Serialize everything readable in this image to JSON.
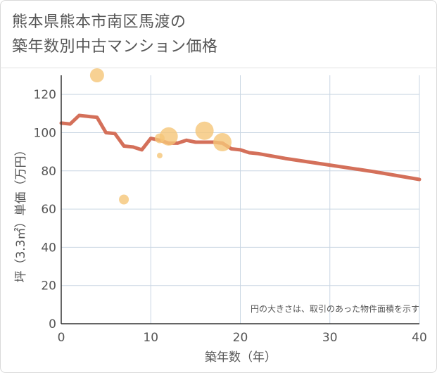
{
  "title": {
    "line1": "熊本県熊本市南区馬渡の",
    "line2": "築年数別中古マンション価格"
  },
  "chart_data": {
    "type": "scatter",
    "xlabel": "築年数（年）",
    "ylabel": "坪（3.3㎡）単価（万円）",
    "xlim": [
      0,
      40
    ],
    "ylim": [
      0,
      130
    ],
    "xticks": [
      0,
      10,
      20,
      30,
      40
    ],
    "yticks": [
      0,
      20,
      40,
      60,
      80,
      100,
      120
    ],
    "grid": true,
    "note": "円の大きさは、取引のあった物件面積を示す",
    "colors": {
      "points": "#f5c578",
      "trend": "#d4705a",
      "grid": "#c9d6e3",
      "text": "#555555"
    },
    "points": [
      {
        "x": 4,
        "y": 130,
        "size": 3
      },
      {
        "x": 7,
        "y": 65,
        "size": 2
      },
      {
        "x": 11,
        "y": 88,
        "size": 1
      },
      {
        "x": 11,
        "y": 97,
        "size": 2
      },
      {
        "x": 12,
        "y": 98,
        "size": 4
      },
      {
        "x": 16,
        "y": 101,
        "size": 4
      },
      {
        "x": 18,
        "y": 95,
        "size": 4
      }
    ],
    "trend": {
      "x": [
        0,
        1,
        2,
        3,
        4,
        5,
        6,
        7,
        8,
        9,
        10,
        11,
        12,
        13,
        14,
        15,
        16,
        17,
        18,
        19,
        20,
        21,
        22,
        25,
        30,
        35,
        40
      ],
      "y": [
        105,
        104.5,
        109,
        108.5,
        108,
        100,
        99.5,
        93,
        92.5,
        91,
        97,
        96,
        94.5,
        94.5,
        96,
        95,
        95,
        95,
        94.5,
        91.5,
        91,
        89.5,
        89,
        86.5,
        83,
        79.5,
        75.5
      ]
    }
  }
}
